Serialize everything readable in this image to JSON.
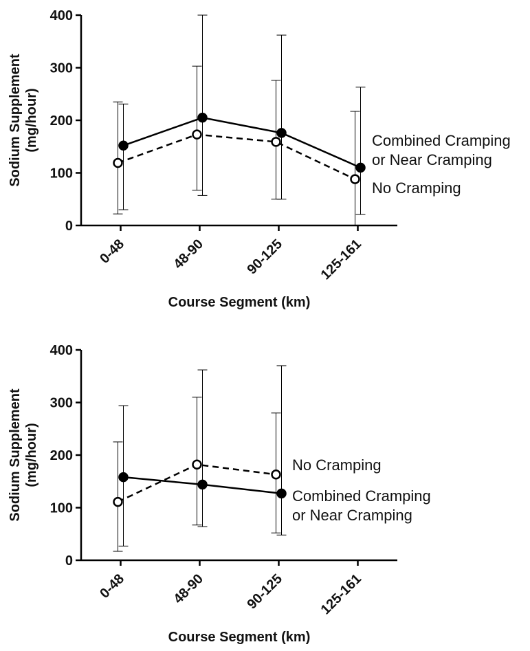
{
  "chart_data": [
    {
      "type": "line",
      "ylabel": [
        "Sodium Supplement",
        "(mg/hour)"
      ],
      "xlabel": "Course Segment (km)",
      "categories": [
        "0-48",
        "48-90",
        "90-125",
        "125-161"
      ],
      "ylim": [
        0,
        400
      ],
      "yticks": [
        0,
        100,
        200,
        300,
        400
      ],
      "series": [
        {
          "name": [
            "Combined Cramping",
            "or Near Cramping"
          ],
          "color": "#000000",
          "marker": "filled",
          "dashed": false,
          "values": [
            152,
            205,
            176,
            110
          ],
          "lower": [
            30,
            57,
            50,
            21
          ],
          "upper": [
            231,
            400,
            362,
            263
          ]
        },
        {
          "name": [
            "No Cramping"
          ],
          "color": "#000000",
          "marker": "open",
          "dashed": true,
          "values": [
            119,
            173,
            159,
            88
          ],
          "lower": [
            22,
            67,
            50,
            0
          ],
          "upper": [
            235,
            303,
            276,
            217
          ]
        }
      ]
    },
    {
      "type": "line",
      "ylabel": [
        "Sodium Supplement",
        "(mg/hour)"
      ],
      "xlabel": "Course Segment (km)",
      "categories": [
        "0-48",
        "48-90",
        "90-125",
        "125-161"
      ],
      "ylim": [
        0,
        400
      ],
      "yticks": [
        0,
        100,
        200,
        300,
        400
      ],
      "series": [
        {
          "name": [
            "Combined Cramping",
            "or Near Cramping"
          ],
          "color": "#000000",
          "marker": "filled",
          "dashed": false,
          "values": [
            158,
            144,
            127,
            null
          ],
          "lower": [
            27,
            64,
            48,
            null
          ],
          "upper": [
            294,
            362,
            370,
            null
          ]
        },
        {
          "name": [
            "No Cramping"
          ],
          "color": "#000000",
          "marker": "open",
          "dashed": true,
          "values": [
            111,
            182,
            163,
            null
          ],
          "lower": [
            17,
            67,
            52,
            null
          ],
          "upper": [
            225,
            310,
            280,
            null
          ]
        }
      ]
    }
  ]
}
